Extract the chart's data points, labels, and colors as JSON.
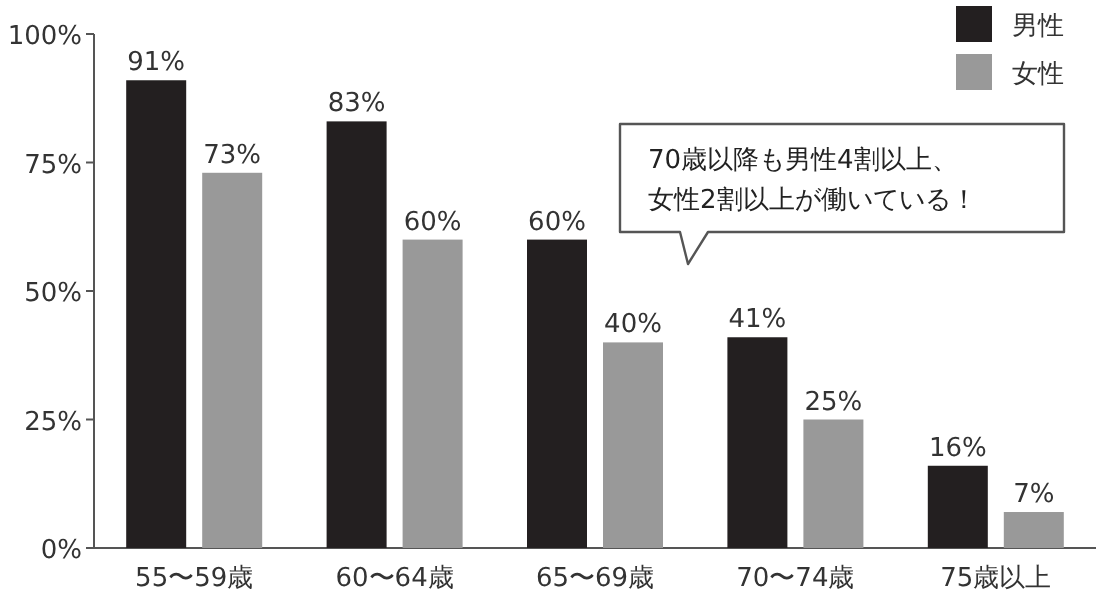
{
  "chart_data": {
    "type": "bar",
    "categories": [
      "55〜59歳",
      "60〜64歳",
      "65〜69歳",
      "70〜74歳",
      "75歳以上"
    ],
    "series": [
      {
        "name": "男性",
        "color": "#231f20",
        "values": [
          91,
          83,
          60,
          41,
          16
        ],
        "value_labels": [
          "91%",
          "83%",
          "60%",
          "41%",
          "16%"
        ]
      },
      {
        "name": "女性",
        "color": "#999999",
        "values": [
          73,
          60,
          40,
          25,
          7
        ],
        "value_labels": [
          "73%",
          "60%",
          "40%",
          "25%",
          "7%"
        ]
      }
    ],
    "ylim": [
      0,
      100
    ],
    "yticks": [
      {
        "value": 0,
        "label": "0%"
      },
      {
        "value": 25,
        "label": "25%"
      },
      {
        "value": 50,
        "label": "50%"
      },
      {
        "value": 75,
        "label": "75%"
      },
      {
        "value": 100,
        "label": "100%"
      }
    ],
    "annotations": [
      "70歳以降も男性4割以上、女性2割以上が働いている！"
    ],
    "legend": "top right"
  }
}
